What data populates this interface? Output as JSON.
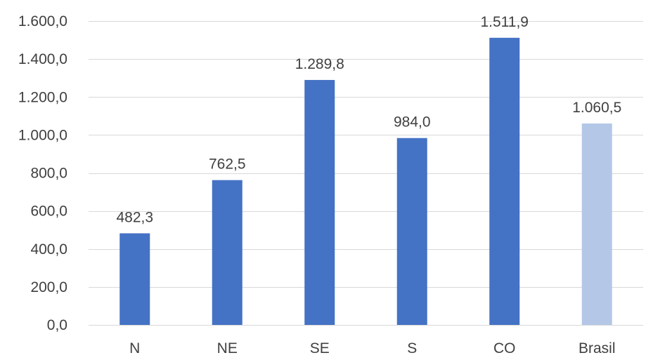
{
  "chart_data": {
    "type": "bar",
    "title": "",
    "xlabel": "",
    "ylabel": "",
    "categories": [
      "N",
      "NE",
      "SE",
      "S",
      "CO",
      "Brasil"
    ],
    "values": [
      482.3,
      762.5,
      1289.8,
      984.0,
      1511.9,
      1060.5
    ],
    "value_labels": [
      "482,3",
      "762,5",
      "1.289,8",
      "984,0",
      "1.511,9",
      "1.060,5"
    ],
    "bar_colors": [
      "#4472c4",
      "#4472c4",
      "#4472c4",
      "#4472c4",
      "#4472c4",
      "#b4c7e7"
    ],
    "ylim": [
      0,
      1600
    ],
    "y_ticks": [
      0,
      200,
      400,
      600,
      800,
      1000,
      1200,
      1400,
      1600
    ],
    "y_tick_labels": [
      "0,0",
      "200,0",
      "400,0",
      "600,0",
      "800,0",
      "1.000,0",
      "1.200,0",
      "1.400,0",
      "1.600,0"
    ],
    "grid": true,
    "legend": "none"
  }
}
